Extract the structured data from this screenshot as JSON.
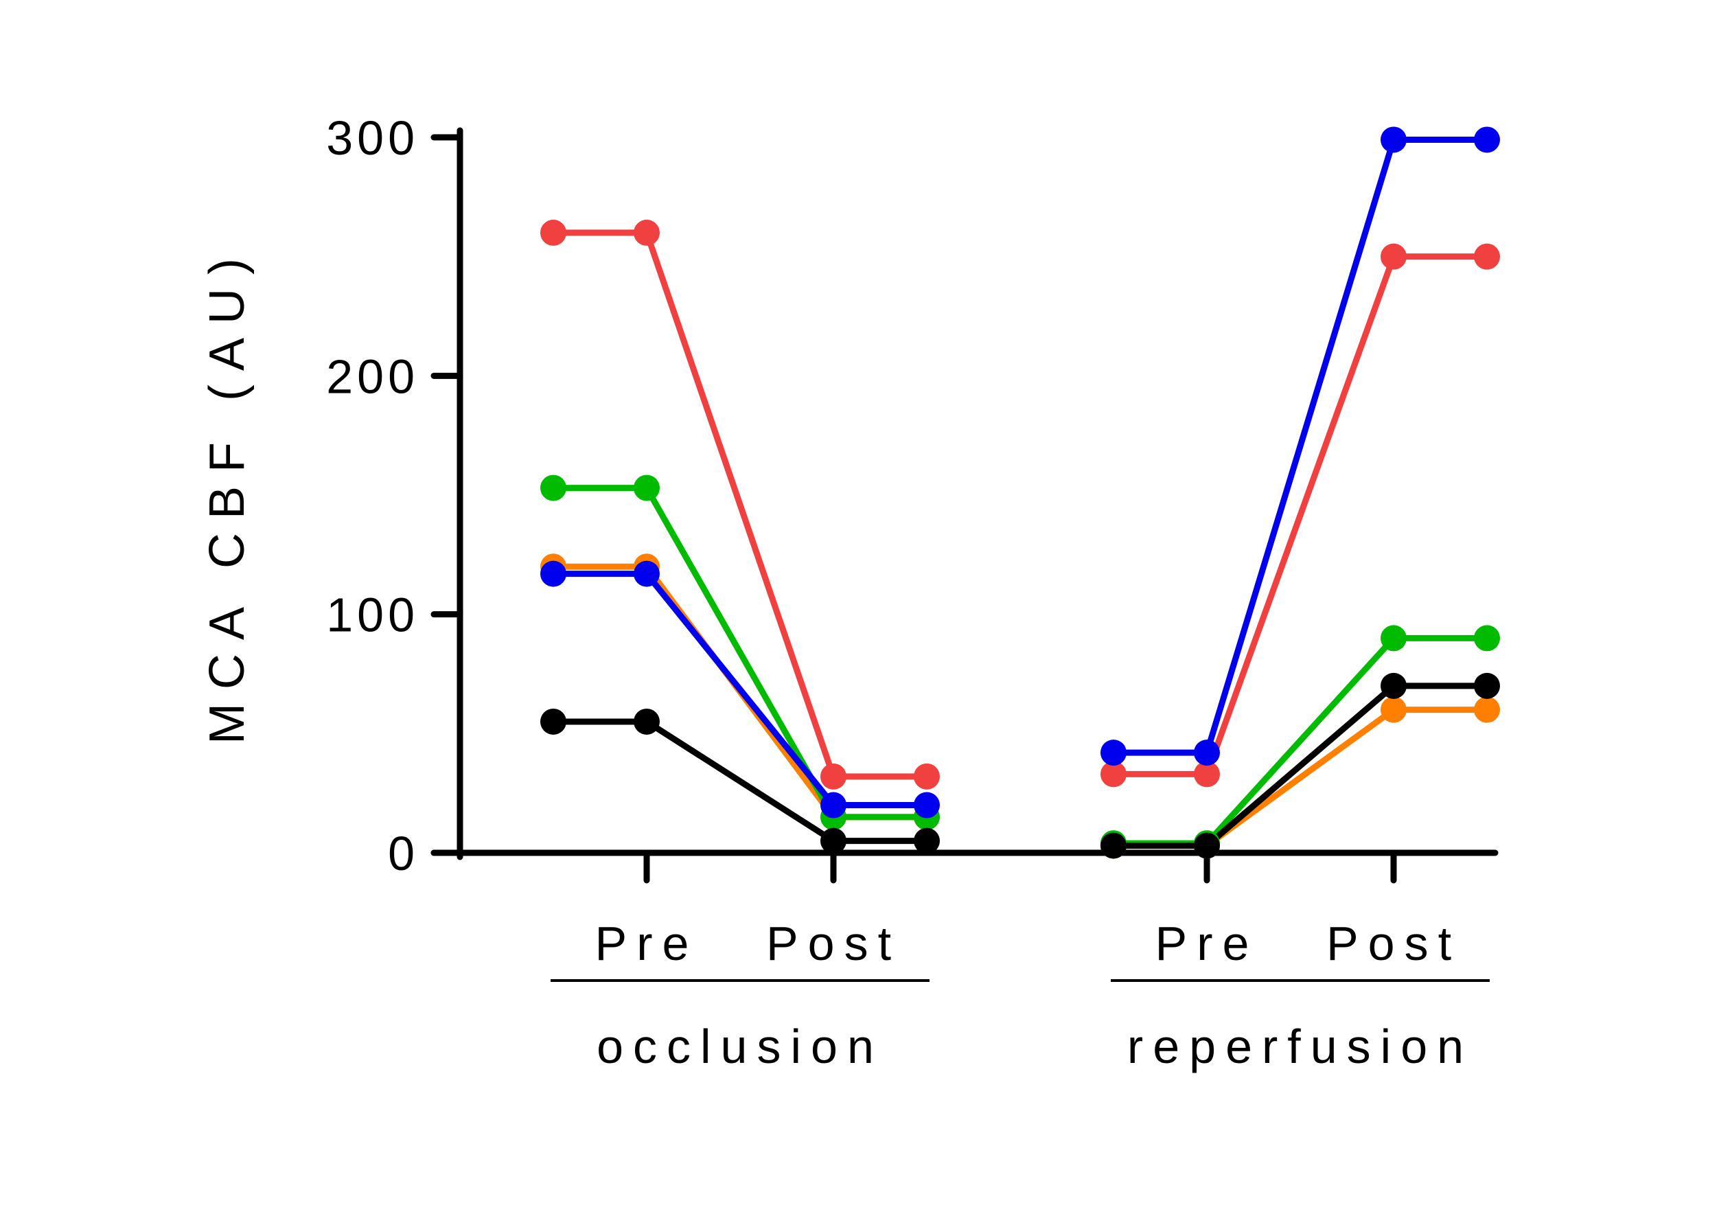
{
  "chart_data": {
    "type": "line",
    "ylabel": "MCA CBF (AU)",
    "ylim": [
      0,
      300
    ],
    "yticks": [
      0,
      100,
      200,
      300
    ],
    "ytick_labels": [
      "0",
      "100",
      "200",
      "300"
    ],
    "x_positions": [
      0.5,
      1,
      2,
      2.5,
      3.5,
      4,
      5,
      5.5
    ],
    "x_ticks": [
      1,
      2,
      4,
      5
    ],
    "x_tick_labels": [
      "Pre",
      "Post",
      "Pre",
      "Post"
    ],
    "groups": [
      {
        "label": "occlusion",
        "ticks": [
          1,
          2
        ]
      },
      {
        "label": "reperfusion",
        "ticks": [
          4,
          5
        ]
      }
    ],
    "series": [
      {
        "color": "#ff8000",
        "segments": [
          [
            120,
            120,
            15,
            15
          ],
          [
            3,
            3,
            60,
            60
          ]
        ]
      },
      {
        "color": "#00bb00",
        "segments": [
          [
            153,
            153,
            15,
            15
          ],
          [
            4,
            4,
            90,
            90
          ]
        ]
      },
      {
        "color": "#000000",
        "segments": [
          [
            55,
            55,
            5,
            5
          ],
          [
            3,
            3,
            70,
            70
          ]
        ]
      },
      {
        "color": "#f04040",
        "segments": [
          [
            260,
            260,
            32,
            32
          ],
          [
            33,
            33,
            250,
            250
          ]
        ]
      },
      {
        "color": "#0000ee",
        "segments": [
          [
            117,
            117,
            20,
            20
          ],
          [
            42,
            42,
            299,
            299
          ]
        ]
      }
    ],
    "grid": false,
    "legend": "none"
  }
}
